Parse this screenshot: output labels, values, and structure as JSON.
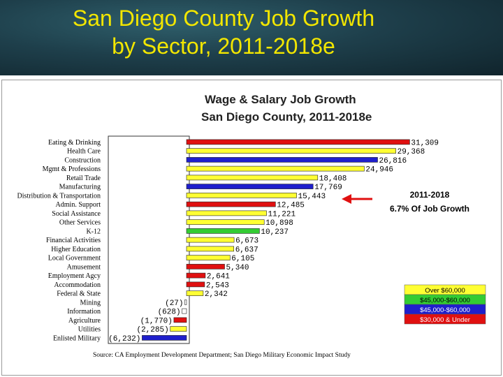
{
  "slide": {
    "title_line1": "San Diego County Job Growth",
    "title_line2": "by Sector, 2011-2018e"
  },
  "chart_data": {
    "type": "bar",
    "orientation": "horizontal",
    "title_line1": "Wage & Salary Job Growth",
    "title_line2": "San Diego County, 2011-2018e",
    "xlim": [
      -6232,
      31309
    ],
    "grid": false,
    "categories": [
      "Eating & Drinking",
      "Health Care",
      "Construction",
      "Mgmt & Professions",
      "Retail Trade",
      "Manufacturing",
      "Distribution & Transportation",
      "Admin. Support",
      "Social Assistance",
      "Other Services",
      "K-12",
      "Financial Activities",
      "Higher Education",
      "Local Government",
      "Amusement",
      "Employment Agcy",
      "Accommodation",
      "Federal & State",
      "Mining",
      "Information",
      "Agriculture",
      "Utilities",
      "Enlisted Military"
    ],
    "values": [
      31309,
      29368,
      26816,
      24946,
      18408,
      17769,
      15443,
      12485,
      11221,
      10898,
      10237,
      6673,
      6637,
      6105,
      5340,
      2641,
      2543,
      2342,
      -27,
      -628,
      -1770,
      -2285,
      -6232
    ],
    "data_labels": [
      "31,309",
      "29,368",
      "26,816",
      "24,946",
      "18,408",
      "17,769",
      "15,443",
      "12,485",
      "11,221",
      "10,898",
      "10,237",
      "6,673",
      "6,637",
      "6,105",
      "5,340",
      "2,641",
      "2,543",
      "2,342",
      "(27)",
      "(628)",
      "(1,770)",
      "(2,285)",
      "(6,232)"
    ],
    "wage_band": [
      "red",
      "yellow",
      "blue",
      "yellow",
      "yellow",
      "blue",
      "yellow",
      "red",
      "yellow",
      "yellow",
      "green",
      "yellow",
      "yellow",
      "yellow",
      "red",
      "red",
      "red",
      "yellow",
      "white",
      "white",
      "red",
      "yellow",
      "blue"
    ],
    "legend_position": "bottom-right",
    "legend": [
      {
        "label": "Over $60,000",
        "band": "yellow"
      },
      {
        "label": "$45,000-$60,000",
        "band": "green"
      },
      {
        "label": "$45,000-$60,000",
        "band": "blue"
      },
      {
        "label": "$30,000 & Under",
        "band": "red"
      }
    ],
    "callout": {
      "line1": "2011-2018",
      "line2": "6.7%  Of Job Growth"
    },
    "source": "Source:   CA Employment Development Department; San Diego Military Economic Impact Study"
  },
  "colors": {
    "yellow": "#ffff33",
    "green": "#33cc33",
    "blue": "#1f1fcc",
    "red": "#e01010",
    "white": "#ffffff",
    "arrow": "#e01010",
    "title": "#f2e600"
  }
}
